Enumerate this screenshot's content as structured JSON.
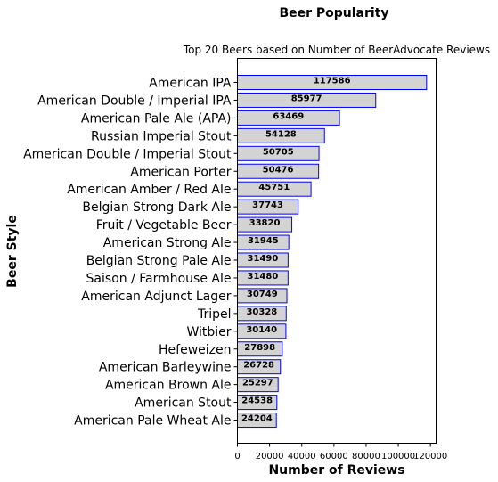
{
  "chart_data": {
    "type": "bar",
    "orientation": "horizontal",
    "suptitle": "Beer Popularity",
    "title": "Top 20 Beers based on Number of BeerAdvocate Reviews",
    "xlabel": "Number of Reviews",
    "ylabel": "Beer Style",
    "xlim": [
      0,
      123500
    ],
    "xticks": [
      0,
      20000,
      40000,
      60000,
      80000,
      100000,
      120000
    ],
    "xtick_labels": [
      "0",
      "20000",
      "40000",
      "60000",
      "80000",
      "100000",
      "120000"
    ],
    "grid": false,
    "bar_fill": "#d3d3d3",
    "bar_edge": "#0000ff",
    "categories": [
      "American IPA",
      "American Double / Imperial IPA",
      "American Pale Ale (APA)",
      "Russian Imperial Stout",
      "American Double / Imperial Stout",
      "American Porter",
      "American Amber / Red Ale",
      "Belgian Strong Dark Ale",
      "Fruit / Vegetable Beer",
      "American Strong Ale",
      "Belgian Strong Pale Ale",
      "Saison / Farmhouse Ale",
      "American Adjunct Lager",
      "Tripel",
      "Witbier",
      "Hefeweizen",
      "American Barleywine",
      "American Brown Ale",
      "American Stout",
      "American Pale Wheat Ale"
    ],
    "values": [
      117586,
      85977,
      63469,
      54128,
      50705,
      50476,
      45751,
      37743,
      33820,
      31945,
      31490,
      31480,
      30749,
      30328,
      30140,
      27898,
      26728,
      25297,
      24538,
      24204
    ],
    "value_labels": [
      "117586",
      "85977",
      "63469",
      "54128",
      "50705",
      "50476",
      "45751",
      "37743",
      "33820",
      "31945",
      "31490",
      "31480",
      "30749",
      "30328",
      "30140",
      "27898",
      "26728",
      "25297",
      "24538",
      "24204"
    ]
  }
}
